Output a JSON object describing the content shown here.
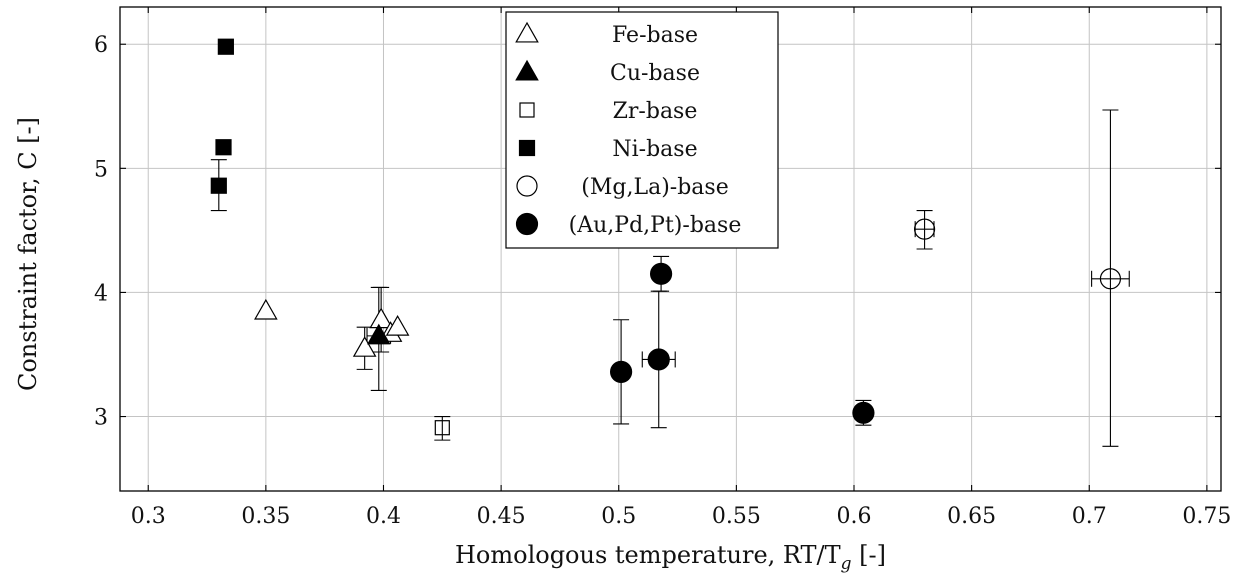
{
  "chart_data": {
    "type": "scatter",
    "xlabel": "Homologous temperature, RT/T",
    "xlabel_sub": "g",
    "xlabel_suffix": " [-]",
    "ylabel": "Constraint factor, C [-]",
    "xlim": [
      0.288,
      0.756
    ],
    "ylim": [
      2.4,
      6.3
    ],
    "xticks": [
      0.3,
      0.35,
      0.4,
      0.45,
      0.5,
      0.55,
      0.6,
      0.65,
      0.7,
      0.75
    ],
    "xtick_labels": [
      "0.3",
      "0.35",
      "0.4",
      "0.45",
      "0.5",
      "0.55",
      "0.6",
      "0.65",
      "0.7",
      "0.75"
    ],
    "yticks": [
      3,
      4,
      5,
      6
    ],
    "ytick_labels": [
      "3",
      "4",
      "5",
      "6"
    ],
    "grid": true,
    "legend_position": "top-center",
    "series": [
      {
        "name": "Fe-base",
        "marker": "triangle-open",
        "points": [
          {
            "x": 0.35,
            "y": 3.85
          },
          {
            "x": 0.392,
            "y": 3.55,
            "yerr": [
              3.38,
              3.72
            ]
          },
          {
            "x": 0.399,
            "y": 3.78,
            "yerr": [
              3.52,
              4.04
            ]
          },
          {
            "x": 0.403,
            "y": 3.67
          },
          {
            "x": 0.406,
            "y": 3.72
          }
        ]
      },
      {
        "name": "Cu-base",
        "marker": "triangle-filled",
        "points": [
          {
            "x": 0.398,
            "y": 3.65,
            "yerr": [
              3.21,
              4.04
            ],
            "xerr": [
              0.393,
              0.403
            ]
          }
        ]
      },
      {
        "name": "Zr-base",
        "marker": "square-open",
        "points": [
          {
            "x": 0.425,
            "y": 2.91,
            "yerr": [
              2.81,
              3.0
            ]
          }
        ]
      },
      {
        "name": "Ni-base",
        "marker": "square-filled",
        "points": [
          {
            "x": 0.33,
            "y": 4.86,
            "yerr": [
              4.66,
              5.07
            ]
          },
          {
            "x": 0.332,
            "y": 5.17
          },
          {
            "x": 0.333,
            "y": 5.98
          }
        ]
      },
      {
        "name": "(Mg,La)-base",
        "marker": "circle-open",
        "points": [
          {
            "x": 0.63,
            "y": 4.51,
            "yerr": [
              4.35,
              4.66
            ],
            "xerr": [
              0.626,
              0.634
            ]
          },
          {
            "x": 0.709,
            "y": 4.11,
            "yerr": [
              2.76,
              5.47
            ],
            "xerr": [
              0.701,
              0.717
            ]
          }
        ]
      },
      {
        "name": "(Au,Pd,Pt)-base",
        "marker": "circle-filled",
        "points": [
          {
            "x": 0.501,
            "y": 3.36,
            "yerr": [
              2.94,
              3.78
            ]
          },
          {
            "x": 0.517,
            "y": 3.46,
            "yerr": [
              2.91,
              4.01
            ],
            "xerr": [
              0.51,
              0.524
            ]
          },
          {
            "x": 0.518,
            "y": 4.15,
            "yerr": [
              4.01,
              4.29
            ]
          },
          {
            "x": 0.604,
            "y": 3.03,
            "yerr": [
              2.93,
              3.13
            ]
          }
        ]
      }
    ]
  }
}
